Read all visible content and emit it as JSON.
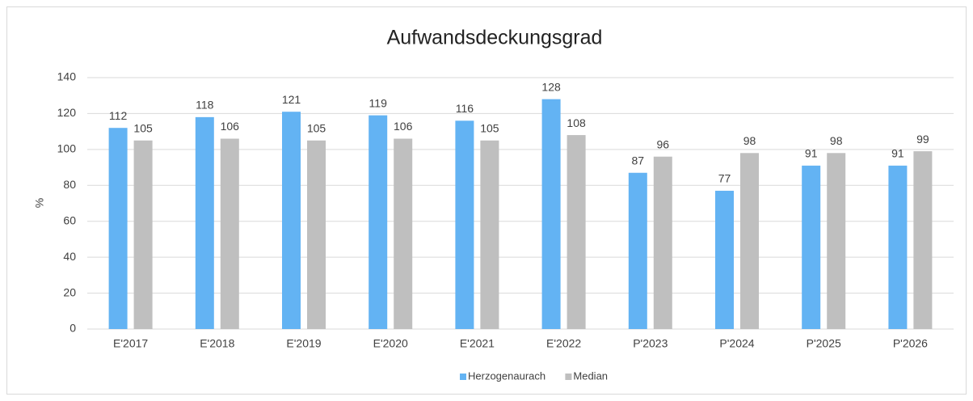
{
  "chart_data": {
    "type": "bar",
    "title": "Aufwandsdeckungsgrad",
    "y_label": "%",
    "categories": [
      "E'2017",
      "E'2018",
      "E'2019",
      "E'2020",
      "E'2021",
      "E'2022",
      "P'2023",
      "P'2024",
      "P'2025",
      "P'2026"
    ],
    "series": [
      {
        "name": "Herzogenaurach",
        "color": "#63b3f3",
        "values": [
          112,
          118,
          121,
          119,
          116,
          128,
          87,
          77,
          91,
          91
        ]
      },
      {
        "name": "Median",
        "color": "#bfbfbf",
        "values": [
          105,
          106,
          105,
          106,
          105,
          108,
          96,
          98,
          98,
          99
        ]
      }
    ],
    "ylim": [
      0,
      140
    ],
    "yticks": [
      0,
      20,
      40,
      60,
      80,
      100,
      120,
      140
    ],
    "grid": true,
    "legend": "bottom"
  }
}
